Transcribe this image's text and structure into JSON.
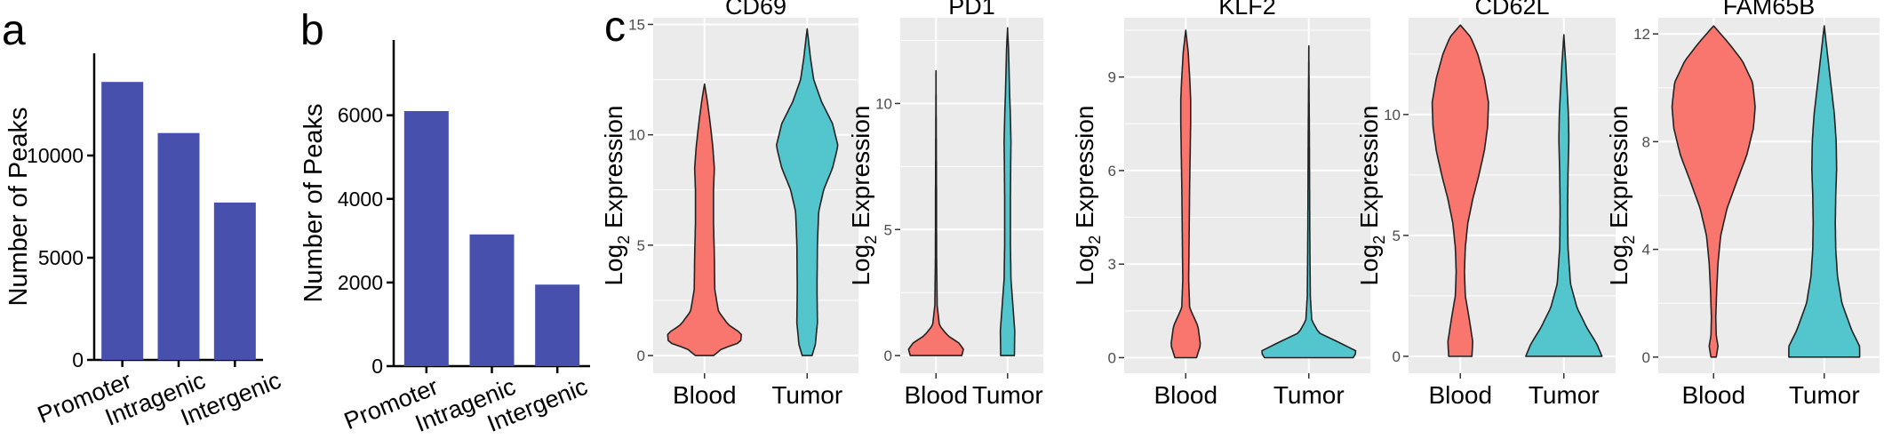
{
  "panels": {
    "a": {
      "letter": "a"
    },
    "b": {
      "letter": "b"
    },
    "c": {
      "letter": "c"
    }
  },
  "colors": {
    "bar": "#4751ad",
    "blood": "#f8766d",
    "tumor": "#52c6cc",
    "panel_bg": "#ebebeb",
    "grid": "#ffffff",
    "axis": "#000000",
    "tick_text": "#4d4d4d"
  },
  "chart_data": [
    {
      "id": "a",
      "type": "bar",
      "title": "",
      "xlabel": "",
      "ylabel": "Number of Peaks",
      "categories": [
        "Promoter",
        "Intragenic",
        "Intergenic"
      ],
      "values": [
        13600,
        11100,
        7700
      ],
      "ylim": [
        0,
        15000
      ],
      "yticks": [
        0,
        5000,
        10000
      ],
      "ytick_labels": [
        "0",
        "5000",
        "10000"
      ]
    },
    {
      "id": "b",
      "type": "bar",
      "title": "",
      "xlabel": "",
      "ylabel": "Number of Peaks",
      "categories": [
        "Promoter",
        "Intragenic",
        "Intergenic"
      ],
      "values": [
        6100,
        3150,
        1950
      ],
      "ylim": [
        0,
        7800
      ],
      "yticks": [
        0,
        2000,
        4000,
        6000
      ],
      "ytick_labels": [
        "0",
        "2000",
        "4000",
        "6000"
      ]
    },
    {
      "id": "CD69",
      "type": "violin",
      "title": "CD69",
      "ylabel_main": "Log",
      "ylabel_sub": "2",
      "ylabel_rest": " Expression",
      "categories": [
        "Blood",
        "Tumor"
      ],
      "ylim": [
        -0.8,
        15.3
      ],
      "yticks": [
        0,
        5,
        10,
        15
      ],
      "ytick_labels": [
        "0",
        "5",
        "10",
        "15"
      ],
      "series": [
        {
          "name": "Blood",
          "range": [
            0,
            12.3
          ],
          "profile": [
            [
              0,
              0.22
            ],
            [
              0.3,
              0.42
            ],
            [
              0.6,
              0.88
            ],
            [
              1.0,
              0.9
            ],
            [
              1.4,
              0.58
            ],
            [
              2.0,
              0.34
            ],
            [
              3.0,
              0.25
            ],
            [
              4.5,
              0.24
            ],
            [
              6,
              0.22
            ],
            [
              7.5,
              0.22
            ],
            [
              8.5,
              0.24
            ],
            [
              9.5,
              0.2
            ],
            [
              10.5,
              0.14
            ],
            [
              11.5,
              0.07
            ],
            [
              12.3,
              0
            ]
          ]
        },
        {
          "name": "Tumor",
          "range": [
            0,
            14.8
          ],
          "profile": [
            [
              0,
              0.12
            ],
            [
              0.5,
              0.2
            ],
            [
              1.5,
              0.25
            ],
            [
              3,
              0.24
            ],
            [
              5,
              0.25
            ],
            [
              6.5,
              0.28
            ],
            [
              7.5,
              0.4
            ],
            [
              8.5,
              0.62
            ],
            [
              9.5,
              0.75
            ],
            [
              10.5,
              0.62
            ],
            [
              11.5,
              0.35
            ],
            [
              12.5,
              0.16
            ],
            [
              13.5,
              0.08
            ],
            [
              14.8,
              0
            ]
          ]
        }
      ]
    },
    {
      "id": "PD1",
      "type": "violin",
      "title": "PD1",
      "ylabel_main": "Log",
      "ylabel_sub": "2",
      "ylabel_rest": " Expression",
      "categories": [
        "Blood",
        "Tumor"
      ],
      "ylim": [
        -0.7,
        13.4
      ],
      "yticks": [
        0,
        5,
        10
      ],
      "ytick_labels": [
        "0",
        "5",
        "10"
      ],
      "series": [
        {
          "name": "Blood",
          "range": [
            0,
            11.3
          ],
          "profile": [
            [
              0,
              0.9
            ],
            [
              0.25,
              0.96
            ],
            [
              0.5,
              0.8
            ],
            [
              0.8,
              0.4
            ],
            [
              1.2,
              0.12
            ],
            [
              2,
              0.04
            ],
            [
              4,
              0.02
            ],
            [
              7,
              0.015
            ],
            [
              11.3,
              0
            ]
          ]
        },
        {
          "name": "Tumor",
          "range": [
            0,
            13.0
          ],
          "profile": [
            [
              0,
              0.24
            ],
            [
              1,
              0.25
            ],
            [
              1.8,
              0.2
            ],
            [
              3,
              0.12
            ],
            [
              4.5,
              0.1
            ],
            [
              6,
              0.1
            ],
            [
              7.5,
              0.11
            ],
            [
              8.5,
              0.12
            ],
            [
              9.5,
              0.1
            ],
            [
              10.5,
              0.07
            ],
            [
              12,
              0.04
            ],
            [
              13,
              0
            ]
          ]
        }
      ]
    },
    {
      "id": "KLF2",
      "type": "violin",
      "title": "KLF2",
      "ylabel_main": "Log",
      "ylabel_sub": "2",
      "ylabel_rest": " Expression",
      "categories": [
        "Blood",
        "Tumor"
      ],
      "ylim": [
        -0.5,
        10.9
      ],
      "yticks": [
        0,
        3,
        6,
        9
      ],
      "ytick_labels": [
        "0",
        "3",
        "6",
        "9"
      ],
      "series": [
        {
          "name": "Blood",
          "range": [
            0,
            10.5
          ],
          "profile": [
            [
              0,
              0.22
            ],
            [
              0.4,
              0.3
            ],
            [
              1.0,
              0.25
            ],
            [
              1.6,
              0.08
            ],
            [
              2.5,
              0.06
            ],
            [
              4,
              0.07
            ],
            [
              5.5,
              0.08
            ],
            [
              6.5,
              0.09
            ],
            [
              7.5,
              0.1
            ],
            [
              8.3,
              0.1
            ],
            [
              9,
              0.08
            ],
            [
              9.8,
              0.05
            ],
            [
              10.5,
              0
            ]
          ]
        },
        {
          "name": "Tumor",
          "range": [
            0,
            10.0
          ],
          "profile": [
            [
              0,
              0.9
            ],
            [
              0.2,
              0.98
            ],
            [
              0.5,
              0.6
            ],
            [
              0.8,
              0.2
            ],
            [
              1.2,
              0.06
            ],
            [
              2,
              0.03
            ],
            [
              4,
              0.02
            ],
            [
              7,
              0.012
            ],
            [
              10,
              0
            ]
          ]
        }
      ]
    },
    {
      "id": "CD62L",
      "type": "violin",
      "title": "CD62L",
      "ylabel_main": "Log",
      "ylabel_sub": "2",
      "ylabel_rest": " Expression",
      "categories": [
        "Blood",
        "Tumor"
      ],
      "ylim": [
        -0.7,
        14.0
      ],
      "yticks": [
        0,
        5,
        10
      ],
      "ytick_labels": [
        "0",
        "5",
        "10"
      ],
      "series": [
        {
          "name": "Blood",
          "range": [
            0,
            13.7
          ],
          "profile": [
            [
              0,
              0.28
            ],
            [
              0.6,
              0.3
            ],
            [
              1.5,
              0.22
            ],
            [
              2.5,
              0.12
            ],
            [
              3.5,
              0.1
            ],
            [
              4.5,
              0.12
            ],
            [
              5.5,
              0.18
            ],
            [
              6.5,
              0.3
            ],
            [
              7.5,
              0.45
            ],
            [
              8.5,
              0.58
            ],
            [
              9.5,
              0.66
            ],
            [
              10.5,
              0.68
            ],
            [
              11.5,
              0.58
            ],
            [
              12.5,
              0.42
            ],
            [
              13.2,
              0.25
            ],
            [
              13.7,
              0
            ]
          ]
        },
        {
          "name": "Tumor",
          "range": [
            0,
            13.3
          ],
          "profile": [
            [
              0,
              0.92
            ],
            [
              0.5,
              0.8
            ],
            [
              1.2,
              0.55
            ],
            [
              2,
              0.32
            ],
            [
              3,
              0.16
            ],
            [
              4.5,
              0.1
            ],
            [
              6,
              0.09
            ],
            [
              7.5,
              0.1
            ],
            [
              9,
              0.12
            ],
            [
              10,
              0.11
            ],
            [
              11,
              0.08
            ],
            [
              12,
              0.05
            ],
            [
              13.3,
              0
            ]
          ]
        }
      ]
    },
    {
      "id": "FAM65B",
      "type": "violin",
      "title": "FAM65B",
      "ylabel_main": "Log",
      "ylabel_sub": "2",
      "ylabel_rest": " Expression",
      "categories": [
        "Blood",
        "Tumor"
      ],
      "ylim": [
        -0.6,
        12.6
      ],
      "yticks": [
        0,
        4,
        8,
        12
      ],
      "ytick_labels": [
        "0",
        "4",
        "8",
        "12"
      ],
      "series": [
        {
          "name": "Blood",
          "range": [
            0,
            12.3
          ],
          "profile": [
            [
              0,
              0.06
            ],
            [
              0.4,
              0.1
            ],
            [
              0.8,
              0.06
            ],
            [
              1.5,
              0.05
            ],
            [
              2.5,
              0.07
            ],
            [
              3.5,
              0.1
            ],
            [
              4.5,
              0.16
            ],
            [
              5.5,
              0.3
            ],
            [
              6.5,
              0.52
            ],
            [
              7.5,
              0.75
            ],
            [
              8.5,
              0.9
            ],
            [
              9.3,
              0.94
            ],
            [
              10.2,
              0.88
            ],
            [
              11,
              0.65
            ],
            [
              11.7,
              0.32
            ],
            [
              12.3,
              0
            ]
          ]
        },
        {
          "name": "Tumor",
          "range": [
            0,
            12.3
          ],
          "profile": [
            [
              0,
              0.8
            ],
            [
              0.4,
              0.8
            ],
            [
              1,
              0.62
            ],
            [
              2,
              0.4
            ],
            [
              3,
              0.3
            ],
            [
              4,
              0.26
            ],
            [
              5,
              0.25
            ],
            [
              6,
              0.26
            ],
            [
              7,
              0.28
            ],
            [
              8,
              0.27
            ],
            [
              9,
              0.23
            ],
            [
              10,
              0.16
            ],
            [
              11,
              0.09
            ],
            [
              12.3,
              0
            ]
          ]
        }
      ]
    }
  ]
}
